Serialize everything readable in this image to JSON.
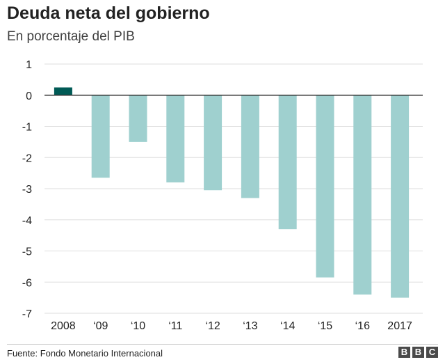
{
  "title": "Deuda neta del gobierno",
  "subtitle": "En porcentaje del PIB",
  "source": "Fuente: Fondo Monetario Internacional",
  "logo": {
    "letters": [
      "B",
      "B",
      "C"
    ]
  },
  "colors": {
    "highlight_bar": "#005a55",
    "bar": "#9fd0cf",
    "grid": "#dddddd",
    "zero_line": "#333333",
    "text": "#222222"
  },
  "chart_data": {
    "type": "bar",
    "categories": [
      "2008",
      "‘09",
      "‘10",
      "‘11",
      "‘12",
      "‘13",
      "‘14",
      "‘15",
      "‘16",
      "2017"
    ],
    "values": [
      0.25,
      -2.65,
      -1.5,
      -2.8,
      -3.05,
      -3.3,
      -4.3,
      -5.85,
      -6.4,
      -6.5
    ],
    "highlight_index": 0,
    "y_ticks": [
      1,
      0,
      -1,
      -2,
      -3,
      -4,
      -5,
      -6,
      -7
    ],
    "ylim": [
      -7,
      1
    ],
    "grid": true
  }
}
